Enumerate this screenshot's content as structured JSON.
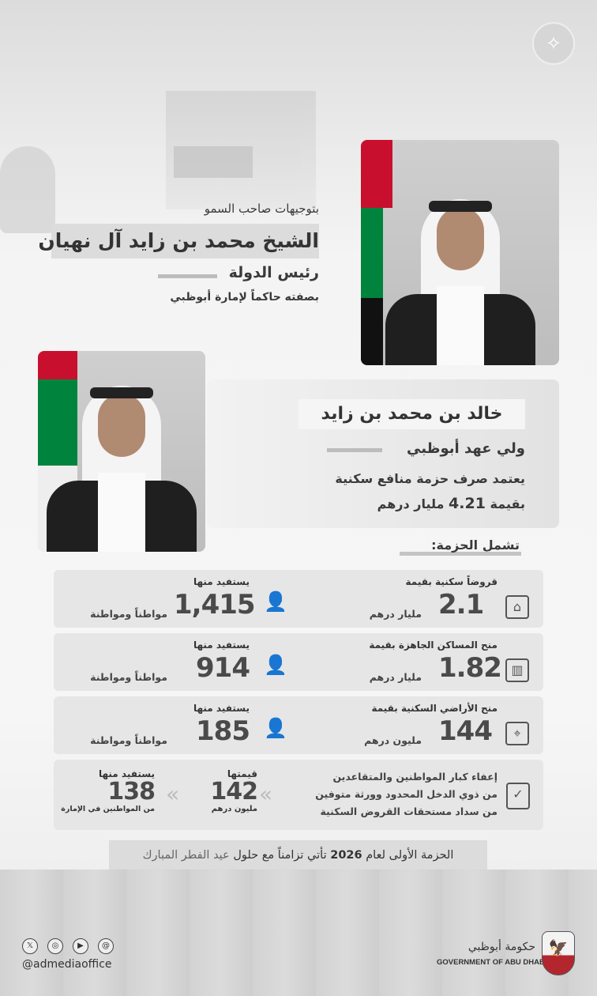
{
  "header": {
    "intro": "بتوجيهات صاحب السمو",
    "president_name": "الشيخ محمد بن زايد آل نهيان",
    "president_title": "رئيس الدولة",
    "president_subtitle": "بصفته حاكماً لإمارة أبوظبي"
  },
  "crown_prince": {
    "name": "خالد بن محمد بن زايد",
    "title": "ولي عهد أبوظبي",
    "statement_line1": "يعتمد صرف حزمة منافع سكنية",
    "statement_prefix": "بقيمة",
    "statement_value": "4.21",
    "statement_unit": "مليار درهم"
  },
  "package_heading": "تشمل الحزمة:",
  "items": [
    {
      "label": "قروضاً سكنية بقيمة",
      "value": "2.1",
      "unit": "مليار درهم",
      "icon": "house-money-icon",
      "beneficiaries_label": "يستفيد منها",
      "beneficiaries": "1,415",
      "beneficiaries_unit": "مواطناً ومواطنة"
    },
    {
      "label": "منح المساكن الجاهزة بقيمة",
      "value": "1.82",
      "unit": "مليار درهم",
      "icon": "building-icon",
      "beneficiaries_label": "يستفيد منها",
      "beneficiaries": "914",
      "beneficiaries_unit": "مواطناً ومواطنة"
    },
    {
      "label": "منح الأراضي السكنية بقيمة",
      "value": "144",
      "unit": "مليون درهم",
      "icon": "land-map-icon",
      "beneficiaries_label": "يستفيد منها",
      "beneficiaries": "185",
      "beneficiaries_unit": "مواطناً ومواطنة"
    }
  ],
  "exemption": {
    "line1": "إعفاء كبار المواطنين والمتقاعدين",
    "line2": "من ذوي الدخل المحدود وورثة متوفين",
    "line3": "من سداد مستحقات القروض السكنية",
    "value_label": "قيمتها",
    "value": "142",
    "value_unit": "مليون درهم",
    "beneficiaries_label": "يستفيد منها",
    "beneficiaries": "138",
    "beneficiaries_unit": "من المواطنين في الإمارة"
  },
  "footer_note": {
    "part1": "الحزمة الأولى لعام",
    "year": "2026",
    "part2": "تأتي تزامناً مع حلول",
    "highlight": "عيد الفطر المبارك"
  },
  "footer": {
    "social_icons": [
      "x-icon",
      "instagram-icon",
      "youtube-icon",
      "threads-icon"
    ],
    "handle": "@admediaoffice",
    "gov_arabic": "حكومة أبوظبي",
    "gov_english": "GOVERNMENT OF ABU DHABI"
  },
  "colors": {
    "flag_red": "#c8102e",
    "flag_green": "#00843d",
    "flag_black": "#000000",
    "crest_red": "#b3262e"
  }
}
